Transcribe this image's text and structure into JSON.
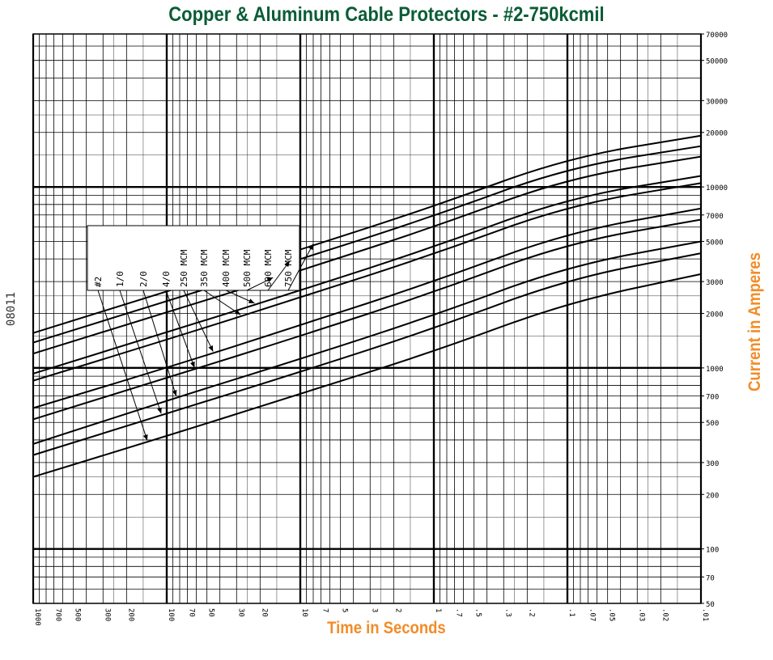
{
  "title": "Copper & Aluminum Cable Protectors - #2-750kcmil",
  "drawing_number": "08011",
  "chart_data": {
    "type": "line",
    "title": "Copper & Aluminum Cable Protectors - #2-750kcmil",
    "xlabel": "Time in Seconds",
    "ylabel": "Current in Amperes",
    "x_scale": "log",
    "y_scale": "log",
    "x_direction": "reversed",
    "xlim": [
      1000,
      0.01
    ],
    "ylim": [
      50,
      70000
    ],
    "grid": true,
    "x_ticks": [
      "1000",
      "700",
      "500",
      "300",
      "200",
      "100",
      "70",
      "50",
      "30",
      "20",
      "10",
      "7",
      "5",
      "3",
      "2",
      "1",
      ".7",
      ".5",
      ".3",
      ".2",
      ".1",
      ".07",
      ".05",
      ".03",
      ".02",
      ".01"
    ],
    "y_ticks": [
      "50",
      "70",
      "100",
      "200",
      "300",
      "500",
      "700",
      "1000",
      "2000",
      "3000",
      "5000",
      "7000",
      "10000",
      "20000",
      "30000",
      "50000",
      "70000"
    ],
    "legend_labels": [
      "#2",
      "1/0",
      "2/0",
      "4/0",
      "250 MCM",
      "350 MCM",
      "400 MCM",
      "500 MCM",
      "600 MCM",
      "750 MCM"
    ],
    "series": [
      {
        "name": "#2",
        "points": [
          [
            1000,
            250
          ],
          [
            100,
            420
          ],
          [
            10,
            720
          ],
          [
            1,
            1230
          ],
          [
            0.1,
            2300
          ],
          [
            0.01,
            3300
          ]
        ]
      },
      {
        "name": "1/0",
        "points": [
          [
            1000,
            330
          ],
          [
            100,
            560
          ],
          [
            10,
            950
          ],
          [
            1,
            1650
          ],
          [
            0.1,
            3100
          ],
          [
            0.01,
            4300
          ]
        ]
      },
      {
        "name": "2/0",
        "points": [
          [
            1000,
            380
          ],
          [
            100,
            660
          ],
          [
            10,
            1120
          ],
          [
            1,
            1950
          ],
          [
            0.1,
            3650
          ],
          [
            0.01,
            5000
          ]
        ]
      },
      {
        "name": "4/0",
        "points": [
          [
            1000,
            520
          ],
          [
            100,
            880
          ],
          [
            10,
            1500
          ],
          [
            1,
            2620
          ],
          [
            0.1,
            4900
          ],
          [
            0.01,
            6600
          ]
        ]
      },
      {
        "name": "250 MCM",
        "points": [
          [
            1000,
            600
          ],
          [
            100,
            1000
          ],
          [
            10,
            1720
          ],
          [
            1,
            3000
          ],
          [
            0.1,
            5600
          ],
          [
            0.01,
            7600
          ]
        ]
      },
      {
        "name": "350 MCM",
        "points": [
          [
            1000,
            850
          ],
          [
            100,
            1430
          ],
          [
            10,
            2450
          ],
          [
            1,
            4250
          ],
          [
            0.1,
            7900
          ],
          [
            0.01,
            10500
          ]
        ]
      },
      {
        "name": "400 MCM",
        "points": [
          [
            1000,
            930
          ],
          [
            100,
            1570
          ],
          [
            10,
            2680
          ],
          [
            1,
            4650
          ],
          [
            0.1,
            8700
          ],
          [
            0.01,
            11500
          ]
        ]
      },
      {
        "name": "500 MCM",
        "points": [
          [
            1000,
            1200
          ],
          [
            100,
            2020
          ],
          [
            10,
            3450
          ],
          [
            1,
            6000
          ],
          [
            0.1,
            11200
          ],
          [
            0.01,
            14700
          ]
        ]
      },
      {
        "name": "600 MCM",
        "points": [
          [
            1000,
            1380
          ],
          [
            100,
            2330
          ],
          [
            10,
            3980
          ],
          [
            1,
            6900
          ],
          [
            0.1,
            12800
          ],
          [
            0.01,
            16800
          ]
        ]
      },
      {
        "name": "750 MCM",
        "points": [
          [
            1000,
            1560
          ],
          [
            100,
            2640
          ],
          [
            10,
            4500
          ],
          [
            1,
            7800
          ],
          [
            0.1,
            14500
          ],
          [
            0.01,
            19200
          ]
        ]
      }
    ]
  }
}
